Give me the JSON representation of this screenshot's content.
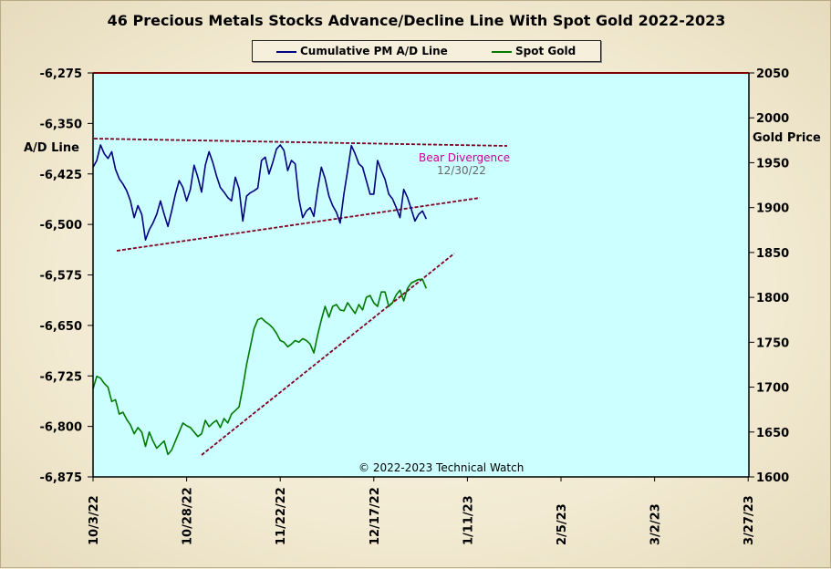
{
  "chart_data": {
    "type": "line",
    "title": "46 Precious Metals Stocks Advance/Decline Line With Spot Gold 2022-2023",
    "y_left": {
      "label": "A/D Line",
      "min": -6875,
      "max": -6275,
      "ticks": [
        "-6,275",
        "-6,350",
        "-6,425",
        "-6,500",
        "-6,575",
        "-6,650",
        "-6,725",
        "-6,800",
        "-6,875"
      ]
    },
    "y_right": {
      "label": "Gold Price",
      "min": 1600,
      "max": 2050,
      "ticks": [
        "2050",
        "2000",
        "1950",
        "1900",
        "1850",
        "1800",
        "1750",
        "1700",
        "1650",
        "1600"
      ]
    },
    "x_ticks": [
      "10/3/22",
      "10/28/22",
      "11/22/22",
      "12/17/22",
      "1/11/23",
      "2/5/23",
      "3/2/23",
      "3/27/23"
    ],
    "x_range": [
      "10/3/22",
      "3/27/23"
    ],
    "legend_position": "top-center",
    "colors": {
      "ad_line": "#000080",
      "gold": "#007a00",
      "trend": "#800020",
      "plot_bg": "#ccffff",
      "top_border": "#800000"
    },
    "series": [
      {
        "name": "Cumulative PM A/D Line",
        "axis": "left",
        "x": [
          0,
          1,
          2,
          3,
          4,
          5,
          6,
          7,
          8,
          9,
          10,
          11,
          12,
          13,
          14,
          15,
          16,
          17,
          18,
          19,
          20,
          21,
          22,
          23,
          24,
          25,
          26,
          27,
          28,
          29,
          30,
          31,
          32,
          33,
          34,
          35,
          36,
          37,
          38,
          39,
          40,
          41,
          42,
          43,
          44,
          45,
          46,
          47,
          48,
          49,
          50,
          51,
          52,
          53,
          54,
          55,
          56,
          57,
          58,
          59,
          60,
          61,
          62,
          63,
          64,
          65,
          66,
          67,
          68,
          69,
          70,
          71,
          72,
          73,
          74,
          75,
          76,
          77,
          78,
          79,
          80,
          81,
          82,
          83,
          84,
          85,
          86,
          87,
          88,
          89
        ],
        "y": [
          -6415,
          -6405,
          -6382,
          -6395,
          -6402,
          -6392,
          -6418,
          -6432,
          -6440,
          -6450,
          -6465,
          -6490,
          -6472,
          -6485,
          -6523,
          -6508,
          -6498,
          -6485,
          -6465,
          -6485,
          -6503,
          -6480,
          -6455,
          -6435,
          -6445,
          -6465,
          -6448,
          -6412,
          -6430,
          -6452,
          -6412,
          -6392,
          -6408,
          -6428,
          -6445,
          -6452,
          -6460,
          -6465,
          -6430,
          -6447,
          -6495,
          -6458,
          -6453,
          -6450,
          -6446,
          -6405,
          -6400,
          -6425,
          -6408,
          -6388,
          -6382,
          -6390,
          -6420,
          -6405,
          -6410,
          -6462,
          -6490,
          -6480,
          -6475,
          -6488,
          -6448,
          -6415,
          -6432,
          -6458,
          -6472,
          -6482,
          -6498,
          -6455,
          -6420,
          -6383,
          -6395,
          -6410,
          -6415,
          -6435,
          -6455,
          -6455,
          -6405,
          -6420,
          -6433,
          -6455,
          -6462,
          -6475,
          -6490,
          -6448,
          -6460,
          -6477,
          -6495,
          -6485,
          -6480,
          -6492
        ]
      },
      {
        "name": "Spot Gold",
        "axis": "right",
        "x": [
          0,
          1,
          2,
          3,
          4,
          5,
          6,
          7,
          8,
          9,
          10,
          11,
          12,
          13,
          14,
          15,
          16,
          17,
          18,
          19,
          20,
          21,
          22,
          23,
          24,
          25,
          26,
          27,
          28,
          29,
          30,
          31,
          32,
          33,
          34,
          35,
          36,
          37,
          38,
          39,
          40,
          41,
          42,
          43,
          44,
          45,
          46,
          47,
          48,
          49,
          50,
          51,
          52,
          53,
          54,
          55,
          56,
          57,
          58,
          59,
          60,
          61,
          62,
          63,
          64,
          65,
          66,
          67,
          68,
          69,
          70,
          71,
          72,
          73,
          74,
          75,
          76,
          77,
          78,
          79,
          80,
          81,
          82,
          83,
          84,
          85,
          86,
          87,
          88,
          89
        ],
        "y": [
          1698,
          1712,
          1710,
          1704,
          1700,
          1684,
          1686,
          1670,
          1672,
          1664,
          1658,
          1648,
          1655,
          1650,
          1634,
          1650,
          1640,
          1632,
          1636,
          1640,
          1625,
          1630,
          1640,
          1650,
          1660,
          1657,
          1655,
          1650,
          1645,
          1648,
          1663,
          1656,
          1660,
          1663,
          1655,
          1665,
          1660,
          1670,
          1674,
          1678,
          1700,
          1725,
          1745,
          1765,
          1775,
          1777,
          1773,
          1770,
          1766,
          1760,
          1752,
          1750,
          1745,
          1748,
          1752,
          1750,
          1754,
          1752,
          1748,
          1738,
          1758,
          1775,
          1790,
          1778,
          1790,
          1792,
          1786,
          1785,
          1794,
          1788,
          1782,
          1792,
          1786,
          1800,
          1802,
          1794,
          1790,
          1806,
          1806,
          1790,
          1794,
          1803,
          1808,
          1796,
          1810,
          1816,
          1818,
          1820,
          1820,
          1810
        ]
      }
    ],
    "annotations": [
      {
        "text": "Bear Divergence",
        "color": "#cc0099"
      },
      {
        "text": "12/30/22",
        "color": "#666666"
      },
      {
        "text": "© 2022-2023  Technical  Watch",
        "color": "#000000"
      }
    ]
  }
}
